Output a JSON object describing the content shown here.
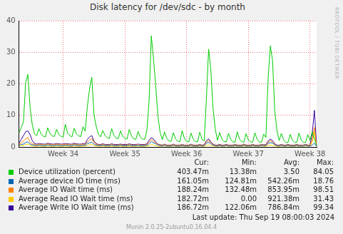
{
  "chart_data": {
    "type": "line",
    "title": "Disk latency for /dev/sdc - by month",
    "grid": true,
    "ylim": [
      0,
      40
    ],
    "yticks": [
      0,
      10,
      20,
      30,
      40
    ],
    "categories": [
      null,
      null,
      null,
      null,
      null,
      null,
      null,
      null,
      null,
      null,
      null,
      null,
      null,
      null,
      null,
      null,
      null,
      null,
      null,
      null,
      "Week 34",
      null,
      null,
      null,
      null,
      null,
      null,
      null,
      null,
      null,
      null,
      null,
      null,
      null,
      null,
      null,
      null,
      null,
      null,
      null,
      null,
      null,
      null,
      null,
      null,
      null,
      null,
      null,
      "Week 35",
      null,
      null,
      null,
      null,
      null,
      null,
      null,
      null,
      null,
      null,
      null,
      null,
      null,
      null,
      null,
      null,
      null,
      null,
      null,
      null,
      null,
      null,
      null,
      null,
      null,
      null,
      null,
      "Week 36",
      null,
      null,
      null,
      null,
      null,
      null,
      null,
      null,
      null,
      null,
      null,
      null,
      null,
      null,
      null,
      null,
      null,
      null,
      null,
      null,
      null,
      null,
      null,
      null,
      null,
      null,
      null,
      "Week 37",
      null,
      null,
      null,
      null,
      null,
      null,
      null,
      null,
      null,
      null,
      null,
      null,
      null,
      null,
      null,
      null,
      null,
      null,
      null,
      null,
      null,
      null,
      null,
      null,
      null,
      null,
      null,
      "Week 38",
      null,
      null,
      null
    ],
    "series": [
      {
        "name": "Device utilization (percent)",
        "color": "#00cc00",
        "values": [
          4.5,
          6.2,
          8.0,
          20.5,
          23.0,
          12.5,
          7.0,
          4.2,
          3.6,
          5.8,
          4.1,
          3.4,
          3.2,
          6.1,
          4.3,
          3.5,
          3.3,
          5.6,
          4.0,
          3.4,
          3.1,
          7.2,
          4.4,
          3.6,
          3.2,
          5.9,
          4.2,
          3.5,
          3.3,
          6.4,
          5.0,
          12.8,
          18.5,
          22.1,
          10.2,
          6.5,
          4.1,
          3.2,
          5.2,
          3.6,
          2.9,
          2.7,
          5.8,
          3.7,
          2.8,
          2.6,
          5.1,
          3.4,
          2.7,
          2.5,
          5.6,
          3.5,
          2.6,
          2.4,
          4.9,
          3.2,
          2.5,
          2.4,
          5.3,
          14.6,
          35.2,
          27.8,
          19.5,
          9.8,
          4.6,
          2.3,
          4.8,
          2.8,
          1.9,
          1.8,
          4.5,
          2.6,
          1.8,
          1.7,
          5.2,
          2.7,
          1.8,
          1.6,
          4.4,
          2.5,
          1.7,
          1.6,
          4.7,
          2.4,
          1.9,
          15.3,
          31.0,
          24.6,
          12.4,
          5.8,
          2.1,
          4.6,
          2.5,
          1.7,
          1.6,
          4.3,
          2.4,
          1.6,
          1.5,
          4.8,
          2.5,
          1.7,
          1.5,
          4.2,
          2.3,
          1.6,
          1.5,
          4.5,
          2.4,
          1.6,
          1.5,
          4.1,
          3.0,
          21.8,
          32.0,
          27.5,
          11.6,
          5.2,
          2.0,
          4.3,
          2.3,
          1.5,
          1.4,
          4.0,
          2.2,
          1.5,
          1.4,
          4.4,
          2.3,
          1.5,
          1.4,
          3.9,
          2.1,
          4.8,
          2.6,
          0.4
        ]
      },
      {
        "name": "Average device IO time (ms)",
        "color": "#0066b3",
        "values": [
          0.6,
          0.8,
          0.9,
          1.4,
          1.6,
          0.9,
          0.7,
          0.5,
          0.4,
          0.6,
          0.5,
          0.4,
          0.4,
          0.7,
          0.5,
          0.4,
          0.4,
          0.6,
          0.5,
          0.4,
          0.4,
          0.6,
          0.5,
          0.4,
          0.4,
          0.7,
          0.5,
          0.4,
          0.4,
          0.6,
          0.5,
          1.1,
          1.3,
          1.5,
          0.9,
          0.6,
          0.5,
          0.4,
          0.6,
          0.4,
          0.4,
          0.4,
          0.6,
          0.4,
          0.4,
          0.4,
          0.6,
          0.4,
          0.4,
          0.4,
          0.6,
          0.4,
          0.4,
          0.4,
          0.5,
          0.4,
          0.4,
          0.4,
          0.6,
          1.0,
          1.7,
          1.3,
          1.0,
          0.6,
          0.4,
          0.3,
          0.5,
          0.3,
          0.3,
          0.3,
          0.5,
          0.3,
          0.3,
          0.3,
          0.4,
          0.3,
          0.3,
          0.3,
          0.5,
          0.3,
          0.3,
          0.3,
          0.4,
          0.3,
          0.4,
          1.2,
          1.5,
          1.0,
          0.6,
          0.4,
          0.3,
          0.5,
          0.3,
          0.3,
          0.5,
          0.3,
          0.3,
          0.3,
          0.4,
          0.3,
          0.3,
          0.3,
          0.5,
          0.3,
          0.3,
          0.3,
          0.4,
          0.3,
          0.3,
          0.3,
          0.4,
          0.4,
          0.4,
          1.1,
          1.4,
          1.2,
          0.7,
          0.4,
          0.3,
          0.5,
          0.3,
          0.3,
          0.5,
          0.3,
          0.3,
          0.3,
          0.4,
          0.3,
          0.3,
          0.3,
          0.5,
          0.3,
          0.3,
          0.6,
          1.2,
          0.16
        ]
      },
      {
        "name": "Average IO Wait time (ms)",
        "color": "#ff8000",
        "values": [
          0.9,
          1.3,
          1.8,
          2.6,
          3.0,
          1.6,
          1.0,
          0.8,
          0.7,
          0.9,
          0.8,
          0.7,
          0.7,
          1.0,
          0.8,
          0.7,
          0.7,
          0.9,
          0.8,
          0.7,
          0.7,
          0.9,
          0.8,
          0.7,
          0.7,
          1.0,
          0.8,
          0.7,
          0.7,
          0.9,
          0.8,
          1.6,
          2.2,
          2.6,
          1.4,
          0.9,
          0.7,
          0.6,
          0.9,
          0.6,
          0.6,
          0.6,
          0.9,
          0.6,
          0.6,
          0.6,
          0.8,
          0.6,
          0.6,
          0.6,
          0.9,
          0.6,
          0.6,
          0.6,
          0.8,
          0.6,
          0.6,
          0.6,
          0.9,
          1.5,
          2.4,
          1.9,
          1.3,
          0.8,
          0.6,
          0.5,
          0.8,
          0.5,
          0.5,
          0.5,
          0.8,
          0.5,
          0.5,
          0.5,
          0.7,
          0.5,
          0.5,
          0.5,
          0.8,
          0.5,
          0.5,
          0.5,
          0.7,
          0.5,
          0.6,
          1.6,
          2.1,
          1.3,
          0.8,
          0.5,
          0.5,
          0.7,
          0.5,
          0.5,
          0.7,
          0.5,
          0.5,
          0.5,
          0.7,
          0.5,
          0.5,
          0.5,
          0.8,
          0.5,
          0.5,
          0.5,
          0.7,
          0.5,
          0.5,
          0.5,
          0.7,
          0.6,
          0.6,
          1.5,
          2.0,
          1.6,
          0.9,
          0.5,
          0.5,
          0.7,
          0.5,
          0.5,
          0.7,
          0.5,
          0.5,
          0.5,
          0.7,
          0.5,
          0.5,
          0.5,
          0.7,
          0.5,
          0.5,
          2.3,
          6.2,
          0.19
        ]
      },
      {
        "name": "Average Read IO Wait time (ms)",
        "color": "#ffcc00",
        "values": [
          0.3,
          0.4,
          0.5,
          0.8,
          0.9,
          0.5,
          0.3,
          0.2,
          0.2,
          0.3,
          0.2,
          0.2,
          0.2,
          0.3,
          0.2,
          0.2,
          0.2,
          0.3,
          0.2,
          0.2,
          0.2,
          0.3,
          0.2,
          0.2,
          0.2,
          0.3,
          0.2,
          0.2,
          0.2,
          0.3,
          0.2,
          0.5,
          0.7,
          0.8,
          0.4,
          0.3,
          0.2,
          0.2,
          0.3,
          0.2,
          0.2,
          0.2,
          0.3,
          0.2,
          0.2,
          0.2,
          0.3,
          0.2,
          0.2,
          0.2,
          0.3,
          0.2,
          0.2,
          0.2,
          0.3,
          0.2,
          0.2,
          0.2,
          0.3,
          0.4,
          0.8,
          0.6,
          0.4,
          0.2,
          0.2,
          0.2,
          0.3,
          0.2,
          0.2,
          0.2,
          0.3,
          0.2,
          0.2,
          0.2,
          0.3,
          0.2,
          0.2,
          0.2,
          0.3,
          0.2,
          0.2,
          0.2,
          0.3,
          0.2,
          0.2,
          0.5,
          0.7,
          0.4,
          0.3,
          0.2,
          0.2,
          0.3,
          0.2,
          0.2,
          0.3,
          0.2,
          0.2,
          0.2,
          0.3,
          0.2,
          0.2,
          0.2,
          0.3,
          0.2,
          0.2,
          0.2,
          0.3,
          0.2,
          0.2,
          0.2,
          0.3,
          0.2,
          0.2,
          0.5,
          0.6,
          0.5,
          0.3,
          0.2,
          0.2,
          0.3,
          0.2,
          0.2,
          0.3,
          0.2,
          0.2,
          0.2,
          0.3,
          0.2,
          0.2,
          0.2,
          0.3,
          0.2,
          0.2,
          1.5,
          4.6,
          0.18
        ]
      },
      {
        "name": "Average Write IO Wait time (ms)",
        "color": "#330099",
        "values": [
          1.2,
          2.4,
          3.6,
          4.8,
          5.1,
          3.9,
          2.0,
          1.1,
          0.9,
          1.1,
          1.0,
          0.9,
          0.9,
          1.2,
          1.0,
          0.9,
          0.9,
          1.1,
          1.0,
          0.9,
          0.9,
          1.1,
          1.0,
          0.9,
          0.9,
          1.2,
          1.0,
          0.9,
          0.9,
          1.1,
          1.0,
          2.4,
          3.2,
          3.6,
          1.8,
          1.1,
          0.8,
          0.8,
          1.0,
          0.8,
          0.8,
          0.8,
          1.0,
          0.8,
          0.8,
          0.8,
          0.9,
          0.8,
          0.8,
          0.8,
          1.0,
          0.8,
          0.8,
          0.8,
          0.9,
          0.8,
          0.8,
          0.8,
          1.0,
          2.1,
          3.0,
          2.5,
          1.6,
          0.9,
          0.7,
          0.6,
          0.9,
          0.6,
          0.6,
          0.6,
          0.9,
          0.6,
          0.6,
          0.6,
          0.8,
          0.6,
          0.6,
          0.6,
          0.9,
          0.6,
          0.6,
          0.6,
          0.8,
          0.6,
          0.7,
          2.0,
          2.6,
          1.6,
          0.9,
          0.6,
          0.6,
          0.8,
          0.6,
          0.6,
          0.8,
          0.6,
          0.6,
          0.6,
          0.8,
          0.6,
          0.6,
          0.6,
          0.9,
          0.6,
          0.6,
          0.6,
          0.8,
          0.6,
          0.6,
          0.6,
          0.8,
          0.7,
          0.7,
          1.9,
          2.5,
          2.0,
          1.0,
          0.6,
          0.6,
          0.8,
          0.6,
          0.6,
          0.8,
          0.6,
          0.6,
          0.6,
          0.8,
          0.6,
          0.6,
          0.6,
          0.8,
          0.6,
          0.6,
          4.2,
          11.6,
          0.19
        ]
      }
    ]
  },
  "watermark": "RRDTOOL / TOBI OETIKER",
  "legend_table": {
    "columns": [
      "Cur:",
      "Min:",
      "Avg:",
      "Max:"
    ],
    "rows": [
      [
        "403.47m",
        "13.38m",
        "3.50",
        "84.05"
      ],
      [
        "161.05m",
        "124.81m",
        "542.26m",
        "18.76"
      ],
      [
        "188.24m",
        "132.48m",
        "853.95m",
        "98.51"
      ],
      [
        "182.72m",
        "0.00",
        "921.38m",
        "31.43"
      ],
      [
        "186.72m",
        "122.06m",
        "786.84m",
        "99.34"
      ]
    ]
  },
  "last_update": "Last update:  Thu Sep 19 08:00:03 2024",
  "footer": "Munin 2.0.25-2ubuntu0.16.04.4"
}
